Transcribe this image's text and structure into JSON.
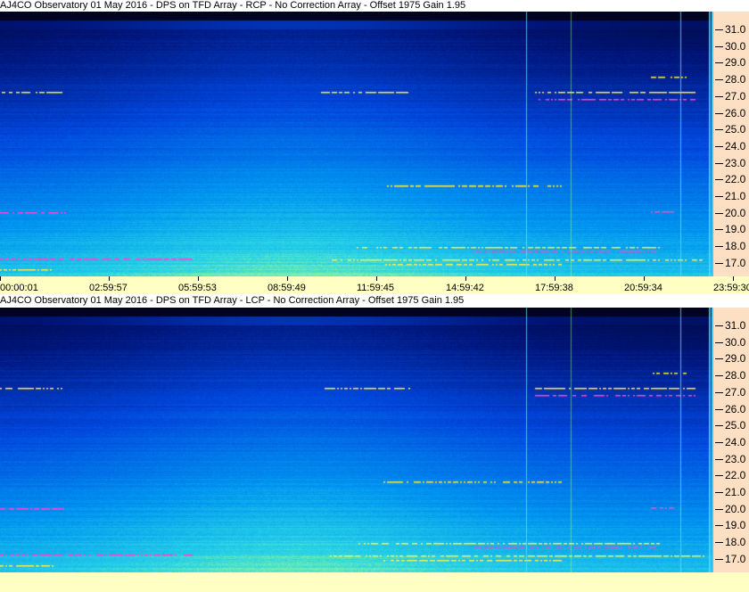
{
  "panels": [
    {
      "title": "AJ4CO Observatory 01 May 2016 - DPS on TFD Array  - RCP  -  No Correction Array  -  Offset 1975  Gain 1.95"
    },
    {
      "title": "AJ4CO Observatory 01 May 2016 - DPS on TFD Array  - LCP  -  No Correction Array  -  Offset 1975  Gain 1.95"
    }
  ],
  "frequency_axis": {
    "labels": [
      "31.0",
      "30.0",
      "29.0",
      "28.0",
      "27.0",
      "26.0",
      "25.0",
      "24.0",
      "23.0",
      "22.0",
      "21.0",
      "20.0",
      "19.0",
      "18.0",
      "17.0"
    ]
  },
  "time_axis": {
    "labels": [
      "00:00:01",
      "02:59:57",
      "05:59:53",
      "08:59:49",
      "11:59:45",
      "14:59:42",
      "17:59:38",
      "20:59:34",
      "23:59:30"
    ]
  },
  "colors": {
    "axis_bg": "#fde0c4",
    "time_bg": "#ffffc4",
    "marker_line": "#3fc8ff"
  }
}
